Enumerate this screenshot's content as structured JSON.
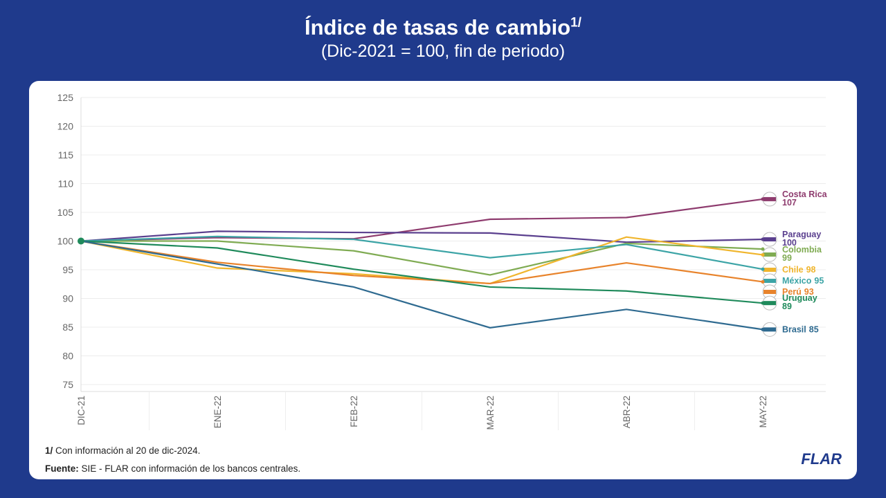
{
  "chart_data": {
    "type": "line",
    "title": "Índice de tasas de cambio",
    "title_note": "1/",
    "subtitle": "(Dic-2021 = 100, fin de periodo)",
    "categories": [
      "DIC-21",
      "ENE-22",
      "FEB-22",
      "MAR-22",
      "ABR-22",
      "MAY-22"
    ],
    "ylim": [
      73.8,
      125
    ],
    "yticks": [
      75,
      80,
      85,
      90,
      95,
      100,
      105,
      110,
      115,
      120,
      125
    ],
    "grid": true,
    "series": [
      {
        "name": "Costa Rica",
        "color": "#8e3b6e",
        "values": [
          100,
          100.6,
          100.4,
          103.8,
          104.1,
          107.3
        ],
        "value_labels": [
          null,
          null,
          null,
          null,
          null,
          "107"
        ]
      },
      {
        "name": "Paraguay",
        "color": "#5a3f8e",
        "values": [
          100,
          101.7,
          101.5,
          101.4,
          99.8,
          100.3
        ],
        "value_labels": [
          null,
          null,
          null,
          null,
          null,
          "100"
        ]
      },
      {
        "name": "Colombia",
        "color": "#7fab52",
        "values": [
          100,
          100,
          98.3,
          94.1,
          99.6,
          98.6
        ],
        "value_labels": [
          null,
          null,
          null,
          null,
          null,
          "99"
        ]
      },
      {
        "name": "Chile",
        "color": "#f0b52c",
        "values": [
          100,
          95.3,
          94.3,
          92.6,
          100.7,
          97.6
        ],
        "value_labels": [
          null,
          null,
          null,
          null,
          null,
          "98"
        ]
      },
      {
        "name": "México",
        "color": "#3ca4a6",
        "values": [
          100,
          100.8,
          100.3,
          97.1,
          99.4,
          95.1
        ],
        "value_labels": [
          null,
          null,
          null,
          null,
          null,
          "95"
        ]
      },
      {
        "name": "Perú",
        "color": "#e8832b",
        "values": [
          100,
          96.3,
          94.0,
          92.6,
          96.2,
          92.9
        ],
        "value_labels": [
          null,
          null,
          null,
          null,
          null,
          "93"
        ]
      },
      {
        "name": "Uruguay",
        "color": "#1f8a5b",
        "values": [
          100,
          98.8,
          95.1,
          92.0,
          91.3,
          89.2
        ],
        "value_labels": [
          null,
          null,
          null,
          null,
          null,
          "89"
        ]
      },
      {
        "name": "Brasil",
        "color": "#2e6a90",
        "values": [
          100,
          96.0,
          92.0,
          84.9,
          88.1,
          84.6
        ],
        "value_labels": [
          null,
          null,
          null,
          null,
          null,
          "85"
        ]
      }
    ]
  },
  "footnote": {
    "marker": "1/",
    "text": "Con información al 20 de dic-2024."
  },
  "source": {
    "label": "Fuente:",
    "text": "SIE - FLAR con información de los bancos centrales."
  },
  "logo": "FLAR"
}
